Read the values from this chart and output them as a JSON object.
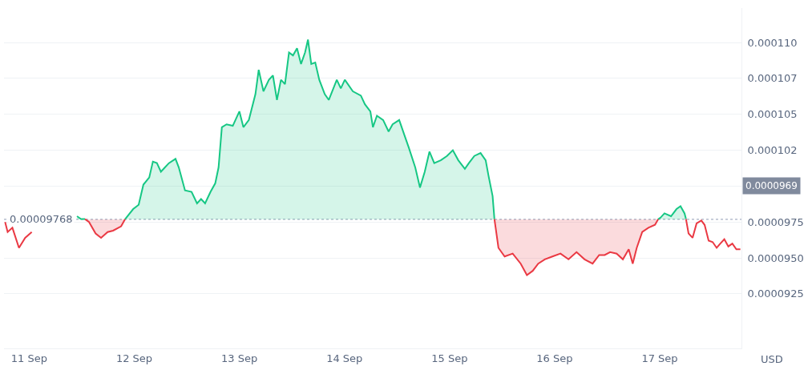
{
  "chart_data": {
    "type": "area",
    "ylabel": "USD",
    "xlim": [
      "--09-10T18:15",
      "--09-17T18:40"
    ],
    "xticks": [
      {
        "value": "--09-11",
        "label": "11 Sep"
      },
      {
        "value": "--09-12",
        "label": "12 Sep"
      },
      {
        "value": "--09-13",
        "label": "13 Sep"
      },
      {
        "value": "--09-14",
        "label": "14 Sep"
      },
      {
        "value": "--09-15",
        "label": "15 Sep"
      },
      {
        "value": "--09-16",
        "label": "16 Sep"
      },
      {
        "value": "--09-17",
        "label": "17 Sep"
      }
    ],
    "ylim": [
      8.87e-05,
      0.0001124
    ],
    "yticks": [
      {
        "value": 9.25e-05,
        "label": "0.0000925"
      },
      {
        "value": 9.5e-05,
        "label": "0.0000950"
      },
      {
        "value": 9.75e-05,
        "label": "0.0000975"
      },
      {
        "value": 0.0001,
        "label": null
      },
      {
        "value": 0.0001025,
        "label": "0.000102"
      },
      {
        "value": 0.000105,
        "label": "0.000105"
      },
      {
        "value": 0.0001075,
        "label": "0.000107"
      },
      {
        "value": 0.00011,
        "label": "0.000110"
      }
    ],
    "grid": "y",
    "line_style": "solid",
    "marker": "none",
    "ref_lines": [
      {
        "axis": "y",
        "value": 9.768e-05,
        "label": "0.00009768",
        "line_style": "dotted",
        "color": "#a6b0c3"
      }
    ],
    "annotations": [
      "0.0000969"
    ],
    "series": [
      {
        "type": "line",
        "color": "#ea3943",
        "x": [
          "--09-10T18:30",
          "--09-10T19:05",
          "--09-10T20:10",
          "--09-10T21:40",
          "--09-10T23:05",
          "--09-11T00:35"
        ],
        "values": [
          9.75e-05,
          9.68e-05,
          9.71e-05,
          9.57e-05,
          9.64e-05,
          9.68e-05
        ]
      },
      {
        "color": "#16c784",
        "x": [
          "--09-11T10:55",
          "--09-11T11:50",
          "--09-11T12:45"
        ],
        "values": [
          9.79e-05,
          9.77e-05,
          9.77e-05
        ]
      },
      {
        "color": "#ea3943",
        "x": [
          "--09-11T12:45",
          "--09-11T13:40",
          "--09-11T15:10",
          "--09-11T16:25",
          "--09-11T17:55",
          "--09-11T19:10",
          "--09-11T21:00",
          "--09-11T21:55"
        ],
        "values": [
          9.77e-05,
          9.75e-05,
          9.67e-05,
          9.64e-05,
          9.68e-05,
          9.69e-05,
          9.72e-05,
          9.77e-05
        ]
      },
      {
        "color": "#16c784",
        "x": [
          "--09-11T21:55",
          "--09-11T23:45",
          "--09-12T01:00",
          "--09-12T02:05",
          "--09-12T03:25",
          "--09-12T04:15",
          "--09-12T05:10",
          "--09-12T06:05",
          "--09-12T07:00",
          "--09-12T07:55",
          "--09-12T09:25",
          "--09-12T10:10",
          "--09-12T11:35",
          "--09-12T13:05",
          "--09-12T14:20",
          "--09-12T15:15",
          "--09-12T16:10",
          "--09-12T17:25",
          "--09-12T18:30",
          "--09-12T19:15",
          "--09-12T20:00",
          "--09-12T21:05",
          "--09-12T22:30",
          "--09-13T00:00",
          "--09-13T00:55",
          "--09-13T02:10",
          "--09-13T03:40",
          "--09-13T04:25",
          "--09-13T05:30",
          "--09-13T06:45",
          "--09-13T07:40",
          "--09-13T08:35",
          "--09-13T09:30",
          "--09-13T10:25",
          "--09-13T11:20",
          "--09-13T12:15",
          "--09-13T13:10",
          "--09-13T14:05",
          "--09-13T15:00",
          "--09-13T15:40",
          "--09-13T16:25",
          "--09-13T17:20",
          "--09-13T18:15",
          "--09-13T19:30",
          "--09-13T20:25",
          "--09-13T22:15",
          "--09-13T23:10",
          "--09-14T00:05",
          "--09-14T01:55",
          "--09-14T03:45",
          "--09-14T04:40",
          "--09-14T05:55",
          "--09-14T06:30",
          "--09-14T07:25",
          "--09-14T08:50",
          "--09-14T10:05",
          "--09-14T11:00",
          "--09-14T12:30",
          "--09-14T13:45",
          "--09-14T14:40",
          "--09-14T16:10",
          "--09-14T17:15",
          "--09-14T18:20",
          "--09-14T19:25",
          "--09-14T20:30",
          "--09-14T22:00",
          "--09-14T23:25",
          "--09-15T00:45",
          "--09-15T02:00",
          "--09-15T03:30",
          "--09-15T04:25",
          "--09-15T05:40",
          "--09-15T07:05",
          "--09-15T08:15",
          "--09-15T08:55",
          "--09-15T09:50",
          "--09-15T10:15"
        ],
        "values": [
          9.77e-05,
          9.84e-05,
          9.87e-05,
          0.0001001,
          0.0001006,
          0.0001017,
          0.0001016,
          0.000101,
          0.0001013,
          0.0001016,
          0.0001019,
          0.0001013,
          9.97e-05,
          9.96e-05,
          9.88e-05,
          9.91e-05,
          9.88e-05,
          9.96e-05,
          0.0001002,
          0.0001013,
          0.0001041,
          0.0001043,
          0.0001042,
          0.0001052,
          0.0001041,
          0.0001046,
          0.0001064,
          0.0001081,
          0.0001066,
          0.0001074,
          0.0001077,
          0.000106,
          0.0001074,
          0.0001071,
          0.0001093,
          0.0001091,
          0.0001096,
          0.0001085,
          0.0001093,
          0.0001102,
          0.0001085,
          0.0001086,
          0.0001074,
          0.0001064,
          0.000106,
          0.0001074,
          0.0001068,
          0.0001074,
          0.0001066,
          0.0001063,
          0.0001057,
          0.0001052,
          0.0001041,
          0.0001049,
          0.0001046,
          0.0001038,
          0.0001043,
          0.0001046,
          0.0001035,
          0.0001027,
          0.0001013,
          9.99e-05,
          0.000101,
          0.0001024,
          0.0001016,
          0.0001018,
          0.0001021,
          0.0001025,
          0.0001018,
          0.0001012,
          0.0001016,
          0.0001021,
          0.0001023,
          0.0001018,
          0.0001007,
          9.93e-05,
          9.77e-05
        ]
      },
      {
        "color": "#ea3943",
        "x": [
          "--09-15T10:15",
          "--09-15T11:10",
          "--09-15T12:35",
          "--09-15T14:25",
          "--09-15T16:15",
          "--09-15T17:40",
          "--09-15T19:00",
          "--09-15T20:15",
          "--09-15T21:45",
          "--09-15T23:30",
          "--09-16T01:20",
          "--09-16T03:10",
          "--09-16T05:00",
          "--09-16T06:50",
          "--09-16T08:40",
          "--09-16T10:10",
          "--09-16T11:25",
          "--09-16T12:40",
          "--09-16T14:10",
          "--09-16T15:35",
          "--09-16T16:55",
          "--09-16T17:50",
          "--09-16T18:45",
          "--09-16T20:00",
          "--09-16T21:25",
          "--09-16T22:55",
          "--09-16T23:40"
        ],
        "values": [
          9.77e-05,
          9.57e-05,
          9.51e-05,
          9.53e-05,
          9.46e-05,
          9.38e-05,
          9.41e-05,
          9.46e-05,
          9.49e-05,
          9.51e-05,
          9.53e-05,
          9.49e-05,
          9.54e-05,
          9.49e-05,
          9.46e-05,
          9.52e-05,
          9.52e-05,
          9.54e-05,
          9.53e-05,
          9.49e-05,
          9.56e-05,
          9.46e-05,
          9.57e-05,
          9.68e-05,
          9.71e-05,
          9.73e-05,
          9.77e-05
        ]
      },
      {
        "color": "#16c784",
        "x": [
          "--09-16T23:40",
          "--09-17T00:10",
          "--09-17T01:05",
          "--09-17T02:35",
          "--09-17T03:50",
          "--09-17T04:45",
          "--09-17T05:40",
          "--09-17T06:00"
        ],
        "values": [
          9.77e-05,
          9.78e-05,
          9.81e-05,
          9.79e-05,
          9.84e-05,
          9.86e-05,
          9.81e-05,
          9.77e-05
        ]
      },
      {
        "type": "line",
        "color": "#ea3943",
        "x": [
          "--09-17T06:00",
          "--09-17T06:35",
          "--09-17T07:30",
          "--09-17T08:25",
          "--09-17T09:30",
          "--09-17T10:15",
          "--09-17T11:10",
          "--09-17T12:05",
          "--09-17T13:00",
          "--09-17T13:50",
          "--09-17T14:45",
          "--09-17T15:40",
          "--09-17T16:35",
          "--09-17T17:30",
          "--09-17T18:25"
        ],
        "values": [
          9.77e-05,
          9.67e-05,
          9.64e-05,
          9.74e-05,
          9.76e-05,
          9.73e-05,
          9.62e-05,
          9.61e-05,
          9.57e-05,
          9.6e-05,
          9.63e-05,
          9.58e-05,
          9.6e-05,
          9.56e-05,
          9.56e-05
        ]
      }
    ]
  }
}
